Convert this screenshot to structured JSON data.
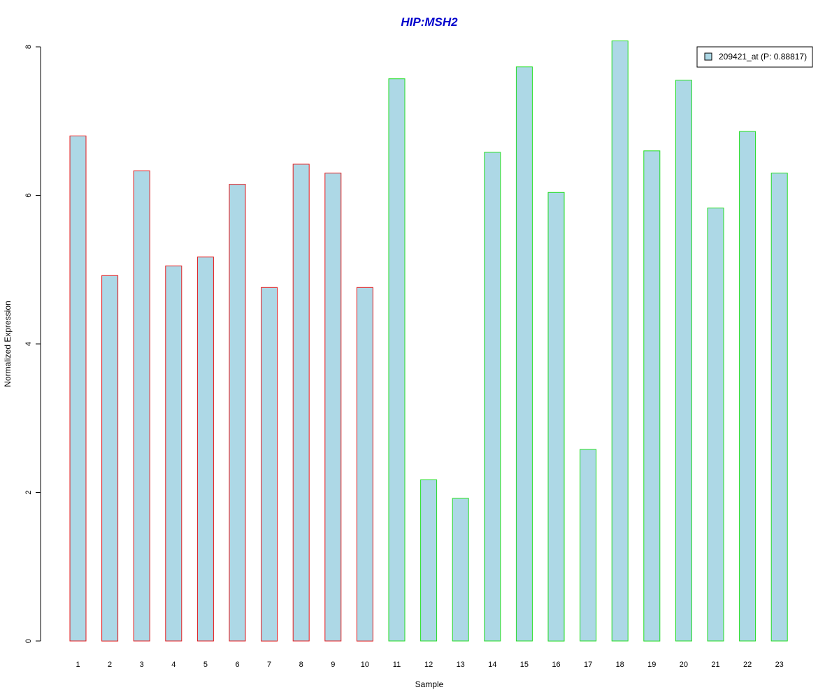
{
  "chart_data": {
    "type": "bar",
    "title": "HIP:MSH2",
    "xlabel": "Sample",
    "ylabel": "Normalized Expression",
    "ylim": [
      0,
      8
    ],
    "yticks": [
      "0",
      "2",
      "4",
      "6",
      "8"
    ],
    "categories": [
      "1",
      "2",
      "3",
      "4",
      "5",
      "6",
      "7",
      "8",
      "9",
      "10",
      "11",
      "12",
      "13",
      "14",
      "15",
      "16",
      "17",
      "18",
      "19",
      "20",
      "21",
      "22",
      "23"
    ],
    "series": [
      {
        "name": "209421_at (P: 0.88817)",
        "values": [
          6.8,
          4.92,
          6.33,
          5.05,
          5.17,
          6.15,
          4.76,
          6.42,
          6.3,
          4.76,
          7.57,
          2.17,
          1.92,
          6.58,
          7.73,
          6.04,
          2.58,
          8.08,
          6.6,
          7.55,
          5.83,
          6.86,
          6.3
        ]
      }
    ],
    "group_outline_colors": [
      "#e31a1c",
      "#e31a1c",
      "#e31a1c",
      "#e31a1c",
      "#e31a1c",
      "#e31a1c",
      "#e31a1c",
      "#e31a1c",
      "#e31a1c",
      "#e31a1c",
      "#22dd22",
      "#22dd22",
      "#22dd22",
      "#22dd22",
      "#22dd22",
      "#22dd22",
      "#22dd22",
      "#22dd22",
      "#22dd22",
      "#22dd22",
      "#22dd22",
      "#22dd22",
      "#22dd22"
    ],
    "grid": false,
    "legend_position": "top-right"
  },
  "colors": {
    "bar_fill": "#add8e6",
    "title": "#0000cc",
    "axis": "#000000"
  }
}
